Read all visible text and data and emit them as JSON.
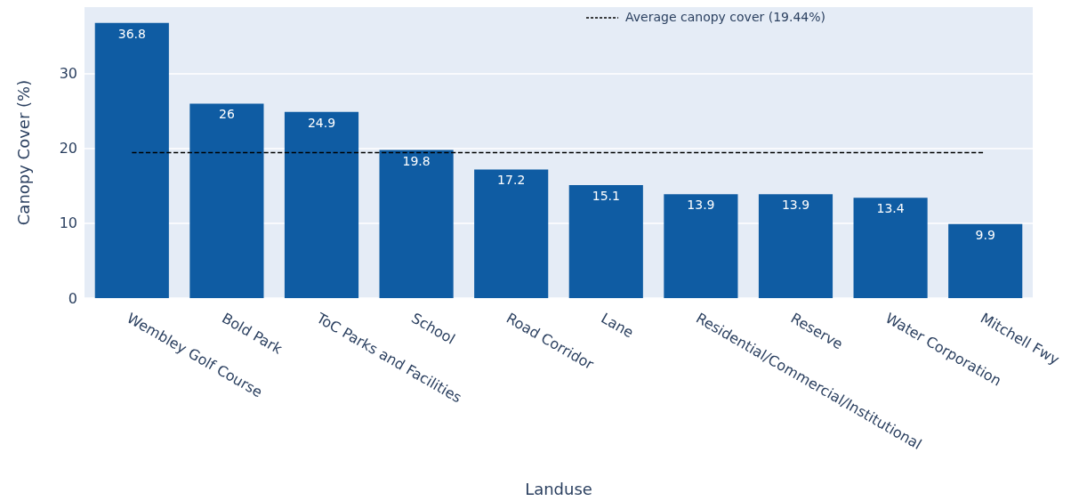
{
  "chart_data": {
    "type": "bar",
    "xlabel": "Landuse",
    "ylabel": "Canopy Cover (%)",
    "categories": [
      "Wembley Golf Course",
      "Bold Park",
      "ToC Parks and Facilities",
      "School",
      "Road Corridor",
      "Lane",
      "Residential/Commercial/Institutional",
      "Reserve",
      "Water Corporation",
      "Mitchell Fwy"
    ],
    "series": [
      {
        "color": "#0f5ca3",
        "values": [
          36.8,
          26,
          24.9,
          19.8,
          17.2,
          15.1,
          13.9,
          13.9,
          13.4,
          9.9
        ]
      }
    ],
    "ref_lines": [
      {
        "axis": "y",
        "value": 19.44,
        "label": "Average canopy cover (19.44%)",
        "color": "#000000",
        "line_style": "dashed"
      }
    ],
    "data_labels": true,
    "ylim": [
      0,
      38.9
    ],
    "yticks": [
      0,
      10,
      20,
      30
    ],
    "grid": "y",
    "legend": "top right"
  }
}
